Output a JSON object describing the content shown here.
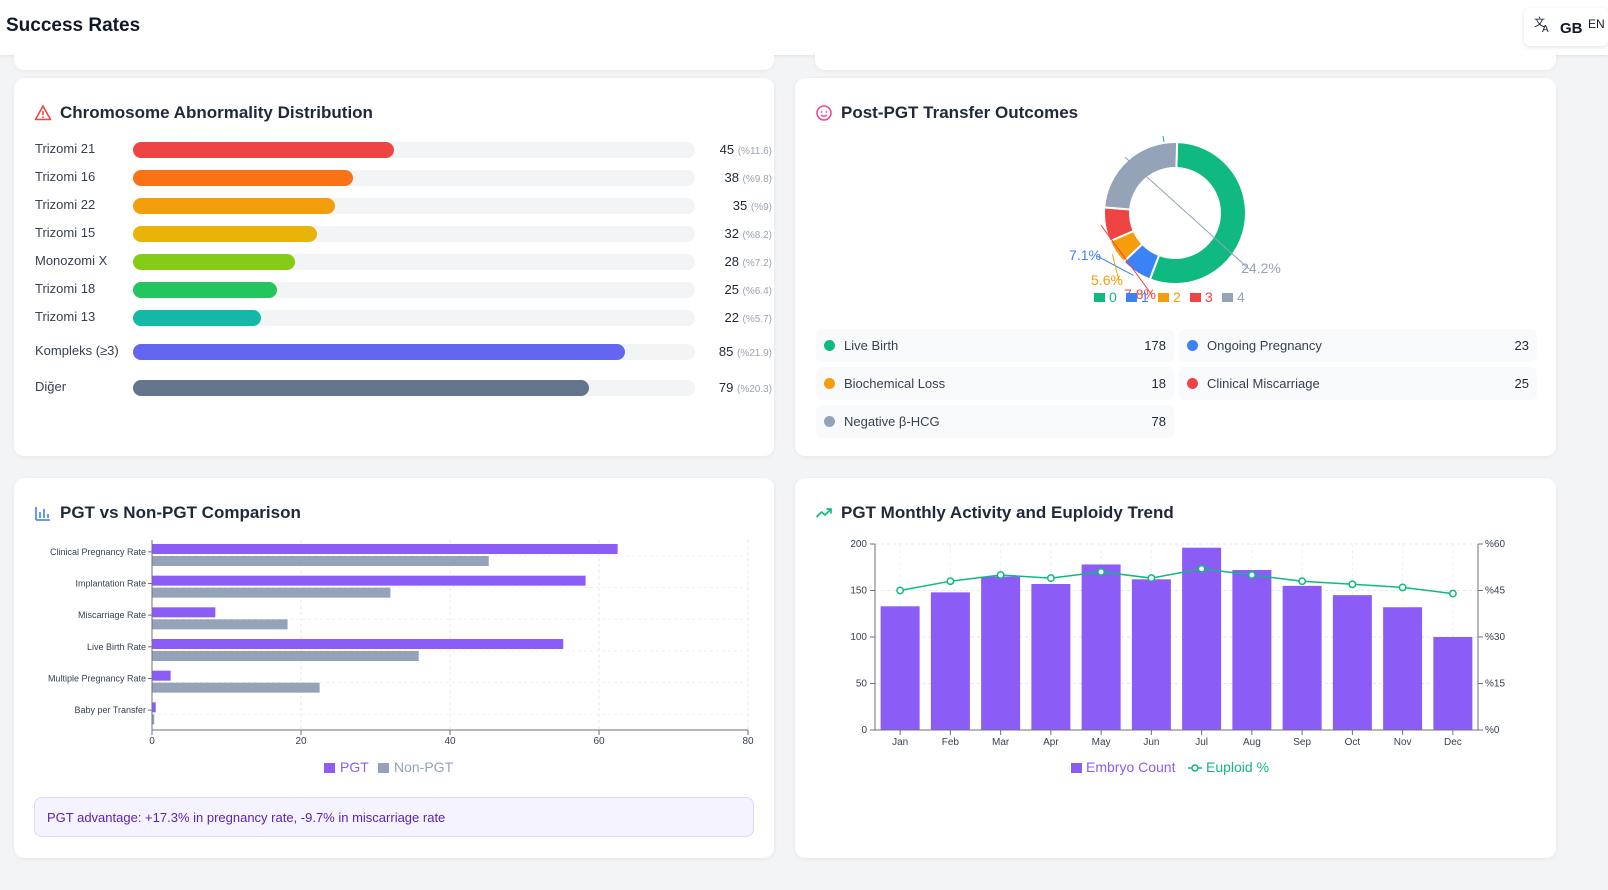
{
  "header": {
    "title": "Success Rates",
    "lang_icon": "translate-icon",
    "lang_flag": "GB",
    "lang_code": "EN"
  },
  "abnormality": {
    "title": "Chromosome Abnormality Distribution",
    "icon": "warning-triangle-icon",
    "items": [
      {
        "label": "Trizomi 21",
        "count": "45",
        "pct": "(%11.6)",
        "share": 0.116,
        "color": "#ef4444"
      },
      {
        "label": "Trizomi 16",
        "count": "38",
        "pct": "(%9.8)",
        "share": 0.098,
        "color": "#f97316"
      },
      {
        "label": "Trizomi 22",
        "count": "35",
        "pct": "(%9)",
        "share": 0.09,
        "color": "#f59e0b"
      },
      {
        "label": "Trizomi 15",
        "count": "32",
        "pct": "(%8.2)",
        "share": 0.082,
        "color": "#eab308"
      },
      {
        "label": "Monozomi X",
        "count": "28",
        "pct": "(%7.2)",
        "share": 0.072,
        "color": "#84cc16"
      },
      {
        "label": "Trizomi 18",
        "count": "25",
        "pct": "(%6.4)",
        "share": 0.064,
        "color": "#22c55e"
      },
      {
        "label": "Trizomi 13",
        "count": "22",
        "pct": "(%5.7)",
        "share": 0.057,
        "color": "#14b8a6"
      },
      {
        "label": "Kompleks (≥3)",
        "count": "85",
        "pct": "(%21.9)",
        "share": 0.219,
        "color": "#6366f1"
      },
      {
        "label": "Diğer",
        "count": "79",
        "pct": "(%20.3)",
        "share": 0.203,
        "color": "#64748b"
      }
    ]
  },
  "outcomes": {
    "title": "Post-PGT Transfer Outcomes",
    "icon": "baby-face-icon",
    "items": [
      {
        "label": "Live Birth",
        "value": "178",
        "color": "#10b981"
      },
      {
        "label": "Ongoing Pregnancy",
        "value": "23",
        "color": "#3b82f6"
      },
      {
        "label": "Biochemical Loss",
        "value": "18",
        "color": "#f59e0b"
      },
      {
        "label": "Clinical Miscarriage",
        "value": "25",
        "color": "#ef4444"
      },
      {
        "label": "Negative β-HCG",
        "value": "78",
        "color": "#94a3b8"
      }
    ]
  },
  "comparison": {
    "title": "PGT vs Non-PGT Comparison",
    "icon": "bar-chart-icon",
    "note": "PGT advantage: +17.3% in pregnancy rate, -9.7% in miscarriage rate"
  },
  "monthly": {
    "title": "PGT Monthly Activity and Euploidy Trend",
    "icon": "trending-up-icon"
  },
  "chart_data": [
    {
      "type": "pie",
      "categories": [
        "0",
        "1",
        "2",
        "3",
        "4"
      ],
      "values": [
        178,
        23,
        18,
        25,
        78
      ],
      "colors": [
        "#10b981",
        "#3b82f6",
        "#f59e0b",
        "#ef4444",
        "#94a3b8"
      ],
      "data_labels": [
        "",
        "7.1%",
        "5.6%",
        "7.8%",
        "24.2%"
      ],
      "legend": "bottom"
    },
    {
      "type": "bar",
      "orientation": "horizontal",
      "categories": [
        "Clinical Pregnancy Rate",
        "Implantation Rate",
        "Miscarriage Rate",
        "Live Birth Rate",
        "Multiple Pregnancy Rate",
        "Baby per Transfer"
      ],
      "series": [
        {
          "name": "PGT",
          "values": [
            62.5,
            58.2,
            8.5,
            55.2,
            2.5,
            0.5
          ],
          "color": "#8b5cf6"
        },
        {
          "name": "Non-PGT",
          "values": [
            45.2,
            32.0,
            18.2,
            35.8,
            22.5,
            0.3
          ],
          "color": "#94a3b8"
        }
      ],
      "xlim": [
        0,
        80
      ],
      "xticks": [
        "0",
        "20",
        "40",
        "60",
        "80"
      ],
      "grid": true,
      "legend": "bottom"
    },
    {
      "type": "bar",
      "categories": [
        "Jan",
        "Feb",
        "Mar",
        "Apr",
        "May",
        "Jun",
        "Jul",
        "Aug",
        "Sep",
        "Oct",
        "Nov",
        "Dec"
      ],
      "series": [
        {
          "name": "Embryo Count",
          "type": "bar",
          "axis": "left",
          "values": [
            133,
            148,
            165,
            157,
            178,
            162,
            196,
            172,
            155,
            145,
            132,
            100
          ],
          "color": "#8b5cf6"
        },
        {
          "name": "Euploid %",
          "type": "line",
          "axis": "right",
          "values": [
            45,
            48,
            50,
            49,
            51,
            49,
            52,
            50,
            48,
            47,
            46,
            44
          ],
          "color": "#10b981"
        }
      ],
      "ylim_left": [
        0,
        200
      ],
      "yticks_left": [
        "0",
        "50",
        "100",
        "150",
        "200"
      ],
      "ylim_right": [
        0,
        60
      ],
      "yticks_right": [
        "%0",
        "%15",
        "%30",
        "%45",
        "%60"
      ],
      "grid": true,
      "legend": "bottom"
    }
  ]
}
